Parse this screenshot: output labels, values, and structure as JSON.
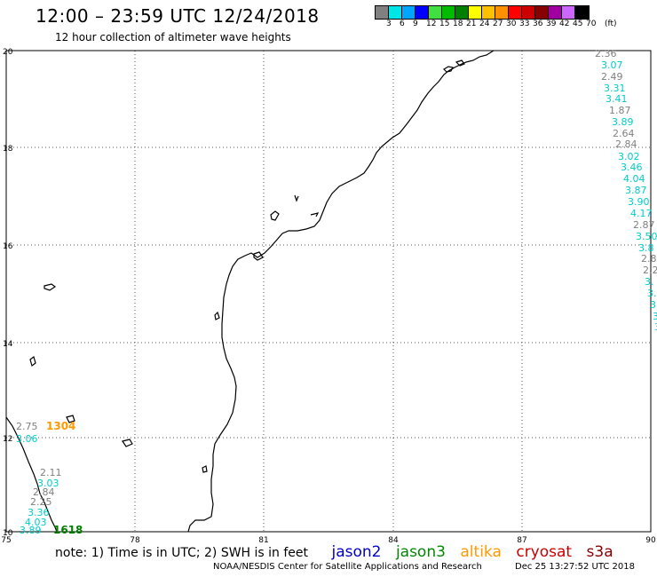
{
  "header": {
    "title": "12:00 – 23:59 UTC 12/24/2018",
    "subtitle": "12 hour collection of altimeter wave heights"
  },
  "colorbar": {
    "unit": "(ft)",
    "colors": [
      "#808080",
      "#00e5e5",
      "#00a5ff",
      "#0000ff",
      "#40e040",
      "#00bb00",
      "#008000",
      "#ffff00",
      "#ffc000",
      "#ff9000",
      "#ff0000",
      "#cc0000",
      "#880000",
      "#a000a0",
      "#cc66ff",
      "#000000"
    ],
    "labels": [
      "3",
      "6",
      "9",
      "12",
      "15",
      "18",
      "21",
      "24",
      "27",
      "30",
      "33",
      "36",
      "39",
      "42",
      "45",
      "70"
    ]
  },
  "map": {
    "lon_ticks": [
      "75",
      "78",
      "81",
      "84",
      "87",
      "90"
    ],
    "lat_ticks": [
      "20",
      "18",
      "16",
      "14",
      "12",
      "10"
    ],
    "lon_range": [
      75,
      90
    ],
    "lat_range": [
      10,
      20
    ]
  },
  "legend": {
    "note": "note: 1) Time is in UTC; 2) SWH is in feet",
    "missions": [
      {
        "name": "jason2",
        "color": "#0000cc"
      },
      {
        "name": "jason3",
        "color": "#008800"
      },
      {
        "name": "altika",
        "color": "#ff9900"
      },
      {
        "name": "cryosat",
        "color": "#cc0000"
      },
      {
        "name": "s3a",
        "color": "#880000"
      }
    ]
  },
  "footer": {
    "credit": "NOAA/NESDIS Center for Satellite Applications and Research",
    "timestamp": "Dec 25 13:27:52 UTC 2018"
  },
  "observations": [
    {
      "label": "2.36",
      "color": "#808080"
    },
    {
      "label": "3.07",
      "color": "#00cccc"
    },
    {
      "label": "2.49",
      "color": "#808080"
    },
    {
      "label": "3.31",
      "color": "#00cccc"
    },
    {
      "label": "3.41",
      "color": "#00cccc"
    },
    {
      "label": "1.87",
      "color": "#808080"
    },
    {
      "label": "3.89",
      "color": "#00cccc"
    },
    {
      "label": "2.64",
      "color": "#808080"
    },
    {
      "label": "2.84",
      "color": "#808080"
    },
    {
      "label": "3.02",
      "color": "#00cccc"
    },
    {
      "label": "3.46",
      "color": "#00cccc"
    },
    {
      "label": "4.04",
      "color": "#00cccc"
    },
    {
      "label": "3.87",
      "color": "#00cccc"
    },
    {
      "label": "3.90",
      "color": "#00cccc"
    },
    {
      "label": "4.17",
      "color": "#00cccc"
    },
    {
      "label": "2.87",
      "color": "#808080"
    },
    {
      "label": "3.50",
      "color": "#00cccc"
    },
    {
      "label": "3.8",
      "color": "#00cccc"
    },
    {
      "label": "2.8",
      "color": "#808080"
    },
    {
      "label": "2.2",
      "color": "#808080"
    },
    {
      "label": "3.",
      "color": "#00cccc"
    },
    {
      "label": "3.",
      "color": "#00cccc"
    },
    {
      "label": "3",
      "color": "#00cccc"
    },
    {
      "label": "3",
      "color": "#00cccc"
    },
    {
      "label": "3",
      "color": "#00cccc"
    },
    {
      "label": "2.75",
      "color": "#808080"
    },
    {
      "label": "1304",
      "color": "#ff9900",
      "bold": true
    },
    {
      "label": "3.06",
      "color": "#00cccc"
    },
    {
      "label": "2.11",
      "color": "#808080"
    },
    {
      "label": "3.03",
      "color": "#00cccc"
    },
    {
      "label": "2.84",
      "color": "#808080"
    },
    {
      "label": "2.25",
      "color": "#808080"
    },
    {
      "label": "3.36",
      "color": "#00cccc"
    },
    {
      "label": "4.03",
      "color": "#00cccc"
    },
    {
      "label": "3.89",
      "color": "#00cccc"
    },
    {
      "label": "1618",
      "color": "#008000",
      "bold": true
    }
  ]
}
